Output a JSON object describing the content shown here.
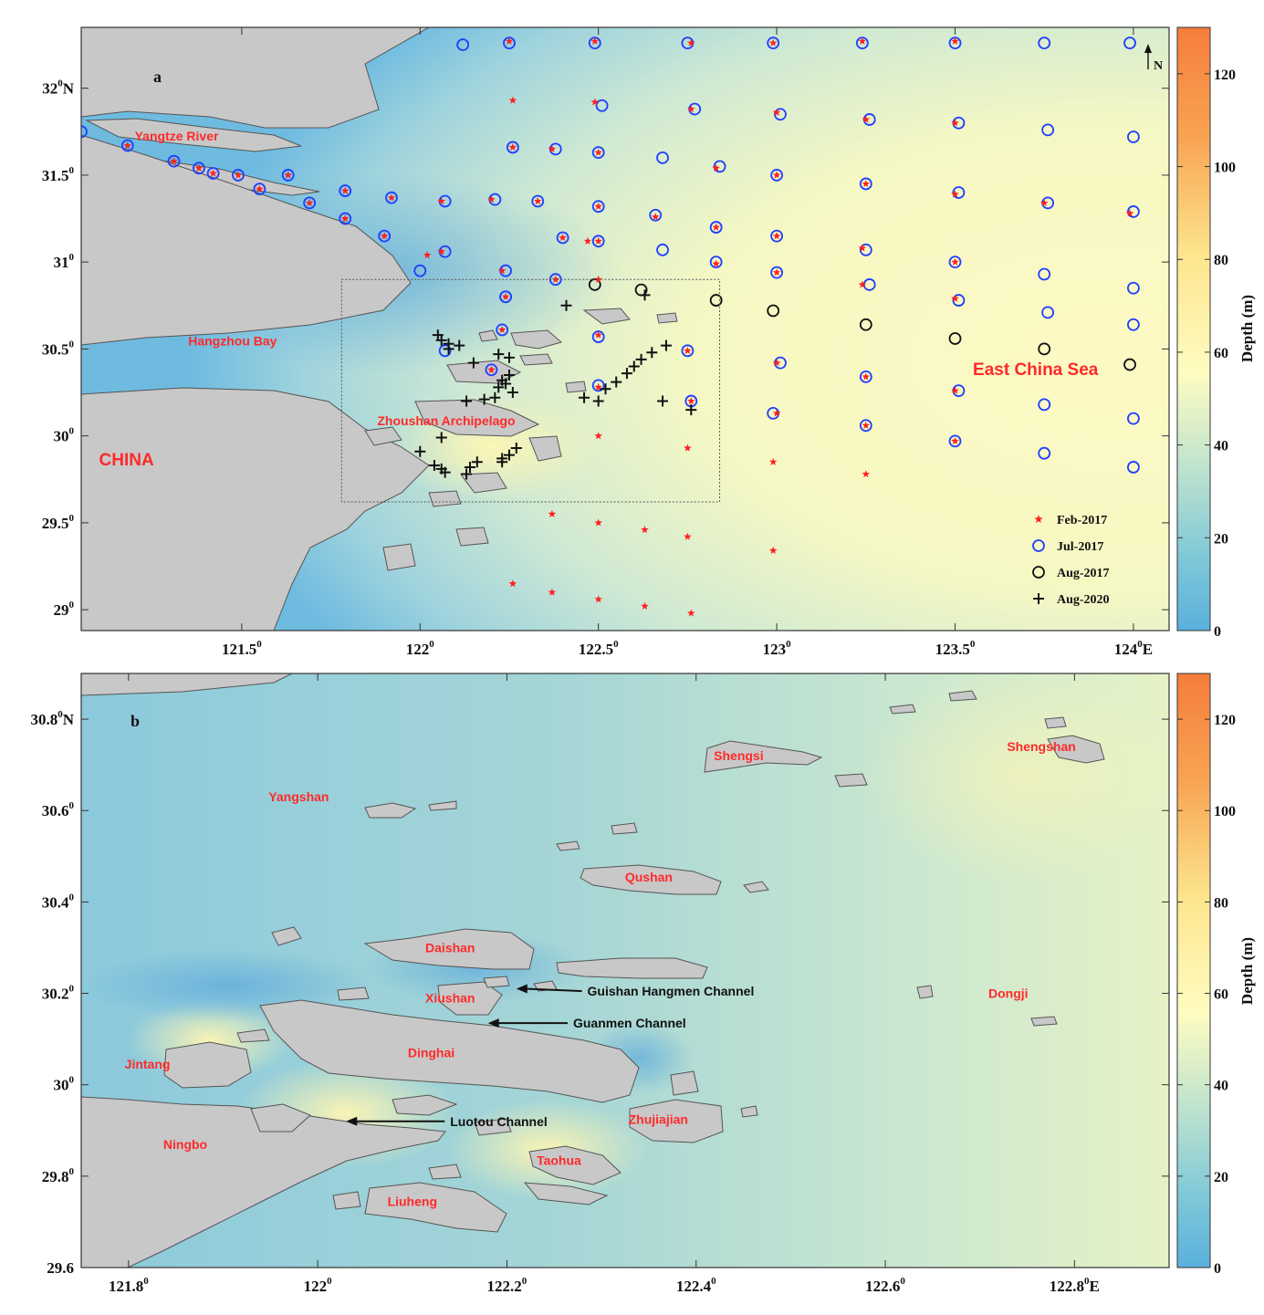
{
  "panel_a": {
    "label": "a",
    "lon_range": [
      121.05,
      124.1
    ],
    "lat_range": [
      28.88,
      32.35
    ],
    "x_ticks": [
      {
        "lon": 121.5,
        "text": "121.5",
        "sup": "0",
        "suffix": ""
      },
      {
        "lon": 122.0,
        "text": "122",
        "sup": "0",
        "suffix": ""
      },
      {
        "lon": 122.5,
        "text": "122.5",
        "sup": "0",
        "suffix": ""
      },
      {
        "lon": 123.0,
        "text": "123",
        "sup": "0",
        "suffix": ""
      },
      {
        "lon": 123.5,
        "text": "123.5",
        "sup": "0",
        "suffix": ""
      },
      {
        "lon": 124.0,
        "text": "124",
        "sup": "0",
        "suffix": "E"
      }
    ],
    "y_ticks": [
      {
        "lat": 29.0,
        "text": "29",
        "sup": "0",
        "suffix": ""
      },
      {
        "lat": 29.5,
        "text": "29.5",
        "sup": "0",
        "suffix": ""
      },
      {
        "lat": 30.0,
        "text": "30",
        "sup": "0",
        "suffix": ""
      },
      {
        "lat": 30.5,
        "text": "30.5",
        "sup": "0",
        "suffix": ""
      },
      {
        "lat": 31.0,
        "text": "31",
        "sup": "0",
        "suffix": ""
      },
      {
        "lat": 31.5,
        "text": "31.5",
        "sup": "0",
        "suffix": ""
      },
      {
        "lat": 32.0,
        "text": "32",
        "sup": "0",
        "suffix": "N"
      }
    ],
    "places": [
      {
        "name": "Yangtze River",
        "lon": 121.2,
        "lat": 31.7,
        "size": 14
      },
      {
        "name": "Hangzhou Bay",
        "lon": 121.35,
        "lat": 30.52,
        "size": 14
      },
      {
        "name": "Zhoushan Archipelago",
        "lon": 121.88,
        "lat": 30.06,
        "size": 14
      },
      {
        "name": "CHINA",
        "lon": 121.1,
        "lat": 29.83,
        "size": 19
      },
      {
        "name": "East China Sea",
        "lon": 123.55,
        "lat": 30.35,
        "size": 19
      }
    ],
    "north_label": "N",
    "inset_box": {
      "lon_range": [
        121.78,
        122.84
      ],
      "lat_range": [
        29.62,
        30.9
      ]
    },
    "legend": [
      {
        "label": "Feb-2017",
        "marker": "star",
        "color": "#ff2020"
      },
      {
        "label": "Jul-2017",
        "marker": "circle",
        "color": "#1f3fff"
      },
      {
        "label": "Aug-2017",
        "marker": "circle",
        "color": "#111111"
      },
      {
        "label": "Aug-2020",
        "marker": "plus",
        "color": "#111111"
      }
    ]
  },
  "stations": {
    "feb_2017": [
      [
        121.18,
        31.67
      ],
      [
        121.31,
        31.58
      ],
      [
        121.38,
        31.54
      ],
      [
        121.42,
        31.51
      ],
      [
        121.49,
        31.5
      ],
      [
        121.55,
        31.42
      ],
      [
        121.63,
        31.5
      ],
      [
        121.69,
        31.34
      ],
      [
        121.79,
        31.41
      ],
      [
        121.79,
        31.25
      ],
      [
        121.92,
        31.37
      ],
      [
        121.9,
        31.15
      ],
      [
        122.06,
        31.35
      ],
      [
        122.06,
        31.06
      ],
      [
        122.2,
        31.36
      ],
      [
        122.23,
        30.95
      ],
      [
        122.33,
        31.35
      ],
      [
        122.37,
        31.65
      ],
      [
        122.4,
        31.14
      ],
      [
        122.24,
        30.8
      ],
      [
        122.23,
        30.61
      ],
      [
        122.2,
        30.38
      ],
      [
        122.5,
        31.63
      ],
      [
        122.5,
        31.32
      ],
      [
        122.5,
        31.12
      ],
      [
        122.47,
        31.12
      ],
      [
        122.38,
        30.9
      ],
      [
        122.5,
        30.9
      ],
      [
        122.5,
        30.58
      ],
      [
        122.5,
        30.28
      ],
      [
        122.5,
        30.0
      ],
      [
        122.25,
        32.27
      ],
      [
        122.26,
        31.93
      ],
      [
        122.26,
        31.66
      ],
      [
        122.49,
        31.92
      ],
      [
        122.49,
        32.27
      ],
      [
        122.76,
        32.26
      ],
      [
        122.76,
        31.88
      ],
      [
        122.83,
        31.54
      ],
      [
        122.66,
        31.26
      ],
      [
        122.83,
        31.2
      ],
      [
        122.83,
        30.99
      ],
      [
        122.75,
        30.49
      ],
      [
        122.76,
        30.2
      ],
      [
        122.75,
        29.93
      ],
      [
        122.99,
        32.26
      ],
      [
        123.0,
        31.86
      ],
      [
        123.0,
        31.5
      ],
      [
        123.0,
        31.15
      ],
      [
        123.0,
        30.94
      ],
      [
        123.0,
        30.42
      ],
      [
        123.0,
        30.13
      ],
      [
        122.99,
        29.85
      ],
      [
        123.24,
        32.27
      ],
      [
        123.25,
        31.82
      ],
      [
        123.25,
        31.45
      ],
      [
        123.24,
        31.08
      ],
      [
        123.24,
        30.87
      ],
      [
        123.25,
        30.34
      ],
      [
        123.25,
        30.06
      ],
      [
        123.25,
        29.78
      ],
      [
        123.5,
        32.27
      ],
      [
        123.5,
        31.8
      ],
      [
        123.5,
        31.39
      ],
      [
        123.5,
        31.0
      ],
      [
        123.5,
        30.79
      ],
      [
        123.5,
        30.26
      ],
      [
        123.5,
        29.97
      ],
      [
        122.37,
        29.55
      ],
      [
        122.5,
        29.5
      ],
      [
        122.63,
        29.46
      ],
      [
        122.75,
        29.42
      ],
      [
        122.99,
        29.34
      ],
      [
        122.26,
        29.15
      ],
      [
        122.37,
        29.1
      ],
      [
        122.5,
        29.06
      ],
      [
        122.63,
        29.02
      ],
      [
        122.76,
        28.98
      ],
      [
        123.75,
        31.34
      ],
      [
        123.99,
        31.28
      ],
      [
        122.02,
        31.04
      ],
      [
        121.02,
        31.73
      ]
    ],
    "jul_2017": [
      [
        121.05,
        31.75
      ],
      [
        121.18,
        31.67
      ],
      [
        121.31,
        31.58
      ],
      [
        121.38,
        31.54
      ],
      [
        121.42,
        31.51
      ],
      [
        121.49,
        31.5
      ],
      [
        121.55,
        31.42
      ],
      [
        121.63,
        31.5
      ],
      [
        121.69,
        31.34
      ],
      [
        121.79,
        31.41
      ],
      [
        121.79,
        31.25
      ],
      [
        121.92,
        31.37
      ],
      [
        121.9,
        31.15
      ],
      [
        122.07,
        31.35
      ],
      [
        122.07,
        31.06
      ],
      [
        122.21,
        31.36
      ],
      [
        122.24,
        30.95
      ],
      [
        122.33,
        31.35
      ],
      [
        122.38,
        31.65
      ],
      [
        122.4,
        31.14
      ],
      [
        122.24,
        30.8
      ],
      [
        122.23,
        30.61
      ],
      [
        122.2,
        30.38
      ],
      [
        122.5,
        31.63
      ],
      [
        122.5,
        31.32
      ],
      [
        122.5,
        31.12
      ],
      [
        122.38,
        30.9
      ],
      [
        122.5,
        30.57
      ],
      [
        122.5,
        30.29
      ],
      [
        122.12,
        32.25
      ],
      [
        122.25,
        32.26
      ],
      [
        122.26,
        31.66
      ],
      [
        122.51,
        31.9
      ],
      [
        122.49,
        32.26
      ],
      [
        122.75,
        32.26
      ],
      [
        122.77,
        31.88
      ],
      [
        122.84,
        31.55
      ],
      [
        122.66,
        31.27
      ],
      [
        122.83,
        31.2
      ],
      [
        122.83,
        31.0
      ],
      [
        122.68,
        31.6
      ],
      [
        122.68,
        31.07
      ],
      [
        122.75,
        30.49
      ],
      [
        122.76,
        30.2
      ],
      [
        122.99,
        32.26
      ],
      [
        123.01,
        31.85
      ],
      [
        123.0,
        31.5
      ],
      [
        123.0,
        31.15
      ],
      [
        123.0,
        30.94
      ],
      [
        123.01,
        30.42
      ],
      [
        122.99,
        30.13
      ],
      [
        123.24,
        32.26
      ],
      [
        123.26,
        31.82
      ],
      [
        123.25,
        31.45
      ],
      [
        123.25,
        31.07
      ],
      [
        123.26,
        30.87
      ],
      [
        123.25,
        30.34
      ],
      [
        123.25,
        30.06
      ],
      [
        123.5,
        32.26
      ],
      [
        123.51,
        31.8
      ],
      [
        123.51,
        31.4
      ],
      [
        123.5,
        31.0
      ],
      [
        123.51,
        30.78
      ],
      [
        123.51,
        30.26
      ],
      [
        123.5,
        29.97
      ],
      [
        123.75,
        32.26
      ],
      [
        123.76,
        31.76
      ],
      [
        123.76,
        31.34
      ],
      [
        123.75,
        30.93
      ],
      [
        123.76,
        30.71
      ],
      [
        123.75,
        30.18
      ],
      [
        123.75,
        29.9
      ],
      [
        123.99,
        32.26
      ],
      [
        124.0,
        31.72
      ],
      [
        124.0,
        31.29
      ],
      [
        124.0,
        30.85
      ],
      [
        124.0,
        30.64
      ],
      [
        124.0,
        30.1
      ],
      [
        124.0,
        29.82
      ],
      [
        122.07,
        30.49
      ],
      [
        122.24,
        30.8
      ],
      [
        122.0,
        30.95
      ]
    ],
    "aug_2017": [
      [
        122.49,
        30.87
      ],
      [
        122.62,
        30.84
      ],
      [
        122.83,
        30.78
      ],
      [
        122.99,
        30.72
      ],
      [
        123.25,
        30.64
      ],
      [
        123.5,
        30.56
      ],
      [
        123.75,
        30.5
      ],
      [
        123.99,
        30.41
      ]
    ],
    "aug_2020": [
      [
        122.05,
        30.58
      ],
      [
        122.06,
        30.55
      ],
      [
        122.08,
        30.53
      ],
      [
        122.11,
        30.52
      ],
      [
        122.08,
        30.5
      ],
      [
        122.15,
        30.42
      ],
      [
        122.22,
        30.47
      ],
      [
        122.25,
        30.45
      ],
      [
        122.25,
        30.35
      ],
      [
        122.23,
        30.32
      ],
      [
        122.22,
        30.28
      ],
      [
        122.24,
        30.3
      ],
      [
        122.26,
        30.25
      ],
      [
        122.21,
        30.22
      ],
      [
        122.18,
        30.21
      ],
      [
        122.13,
        30.2
      ],
      [
        122.41,
        30.75
      ],
      [
        122.63,
        30.81
      ],
      [
        122.69,
        30.52
      ],
      [
        122.65,
        30.48
      ],
      [
        122.62,
        30.44
      ],
      [
        122.6,
        30.4
      ],
      [
        122.58,
        30.36
      ],
      [
        122.55,
        30.31
      ],
      [
        122.52,
        30.27
      ],
      [
        122.46,
        30.22
      ],
      [
        122.5,
        30.2
      ],
      [
        122.68,
        30.2
      ],
      [
        122.76,
        30.15
      ],
      [
        122.06,
        29.99
      ],
      [
        122.0,
        29.91
      ],
      [
        122.04,
        29.83
      ],
      [
        122.06,
        29.81
      ],
      [
        122.07,
        29.79
      ],
      [
        122.13,
        29.78
      ],
      [
        122.14,
        29.82
      ],
      [
        122.16,
        29.85
      ],
      [
        122.23,
        29.87
      ],
      [
        122.25,
        29.89
      ],
      [
        122.27,
        29.93
      ],
      [
        122.23,
        29.85
      ]
    ]
  },
  "panel_b": {
    "label": "b",
    "lon_range": [
      121.75,
      122.9
    ],
    "lat_range": [
      29.6,
      30.9
    ],
    "x_ticks": [
      {
        "lon": 121.8,
        "text": "121.8",
        "sup": "0",
        "suffix": ""
      },
      {
        "lon": 122.0,
        "text": "122",
        "sup": "0",
        "suffix": ""
      },
      {
        "lon": 122.2,
        "text": "122.2",
        "sup": "0",
        "suffix": ""
      },
      {
        "lon": 122.4,
        "text": "122.4",
        "sup": "0",
        "suffix": ""
      },
      {
        "lon": 122.6,
        "text": "122.6",
        "sup": "0",
        "suffix": ""
      },
      {
        "lon": 122.8,
        "text": "122.8",
        "sup": "0",
        "suffix": "E"
      }
    ],
    "y_ticks": [
      {
        "lat": 29.6,
        "text": "29.6",
        "sup": "",
        "suffix": ""
      },
      {
        "lat": 29.8,
        "text": "29.8",
        "sup": "0",
        "suffix": ""
      },
      {
        "lat": 30.0,
        "text": "30",
        "sup": "0",
        "suffix": ""
      },
      {
        "lat": 30.2,
        "text": "30.2",
        "sup": "0",
        "suffix": ""
      },
      {
        "lat": 30.4,
        "text": "30.4",
        "sup": "0",
        "suffix": ""
      },
      {
        "lat": 30.6,
        "text": "30.6",
        "sup": "0",
        "suffix": ""
      },
      {
        "lat": 30.8,
        "text": "30.8",
        "sup": "0",
        "suffix": "N"
      }
    ],
    "places": [
      {
        "name": "Shengsi",
        "lon": 122.445,
        "lat": 30.71
      },
      {
        "name": "Shengshan",
        "lon": 122.765,
        "lat": 30.73
      },
      {
        "name": "Yangshan",
        "lon": 121.98,
        "lat": 30.62
      },
      {
        "name": "Qushan",
        "lon": 122.35,
        "lat": 30.445
      },
      {
        "name": "Daishan",
        "lon": 122.14,
        "lat": 30.29
      },
      {
        "name": "Xiushan",
        "lon": 122.14,
        "lat": 30.18
      },
      {
        "name": "Dongji",
        "lon": 122.73,
        "lat": 30.19
      },
      {
        "name": "Dinghai",
        "lon": 122.12,
        "lat": 30.06
      },
      {
        "name": "Jintang",
        "lon": 121.82,
        "lat": 30.035
      },
      {
        "name": "Zhujiajian",
        "lon": 122.36,
        "lat": 29.915
      },
      {
        "name": "Ningbo",
        "lon": 121.86,
        "lat": 29.86
      },
      {
        "name": "Taohua",
        "lon": 122.255,
        "lat": 29.825
      },
      {
        "name": "Liuheng",
        "lon": 122.1,
        "lat": 29.735
      }
    ],
    "channels": [
      {
        "name": "Guishan Hangmen Channel",
        "tip_lon": 122.21,
        "tip_lat": 30.21,
        "text_lon": 122.285,
        "text_lat": 30.195
      },
      {
        "name": "Guanmen Channel",
        "tip_lon": 122.18,
        "tip_lat": 30.135,
        "text_lon": 122.27,
        "text_lat": 30.125
      },
      {
        "name": "Luotou Channel",
        "tip_lon": 122.03,
        "tip_lat": 29.92,
        "text_lon": 122.14,
        "text_lat": 29.91
      }
    ]
  },
  "colorbar": {
    "label": "Depth (m)",
    "min": 0,
    "max": 130,
    "ticks": [
      0,
      20,
      40,
      60,
      80,
      100,
      120
    ],
    "colors": [
      "#5ab0dc",
      "#7fc8d8",
      "#bfe3cf",
      "#fffcc0",
      "#fde68f",
      "#f8a352",
      "#f57e3b"
    ]
  }
}
